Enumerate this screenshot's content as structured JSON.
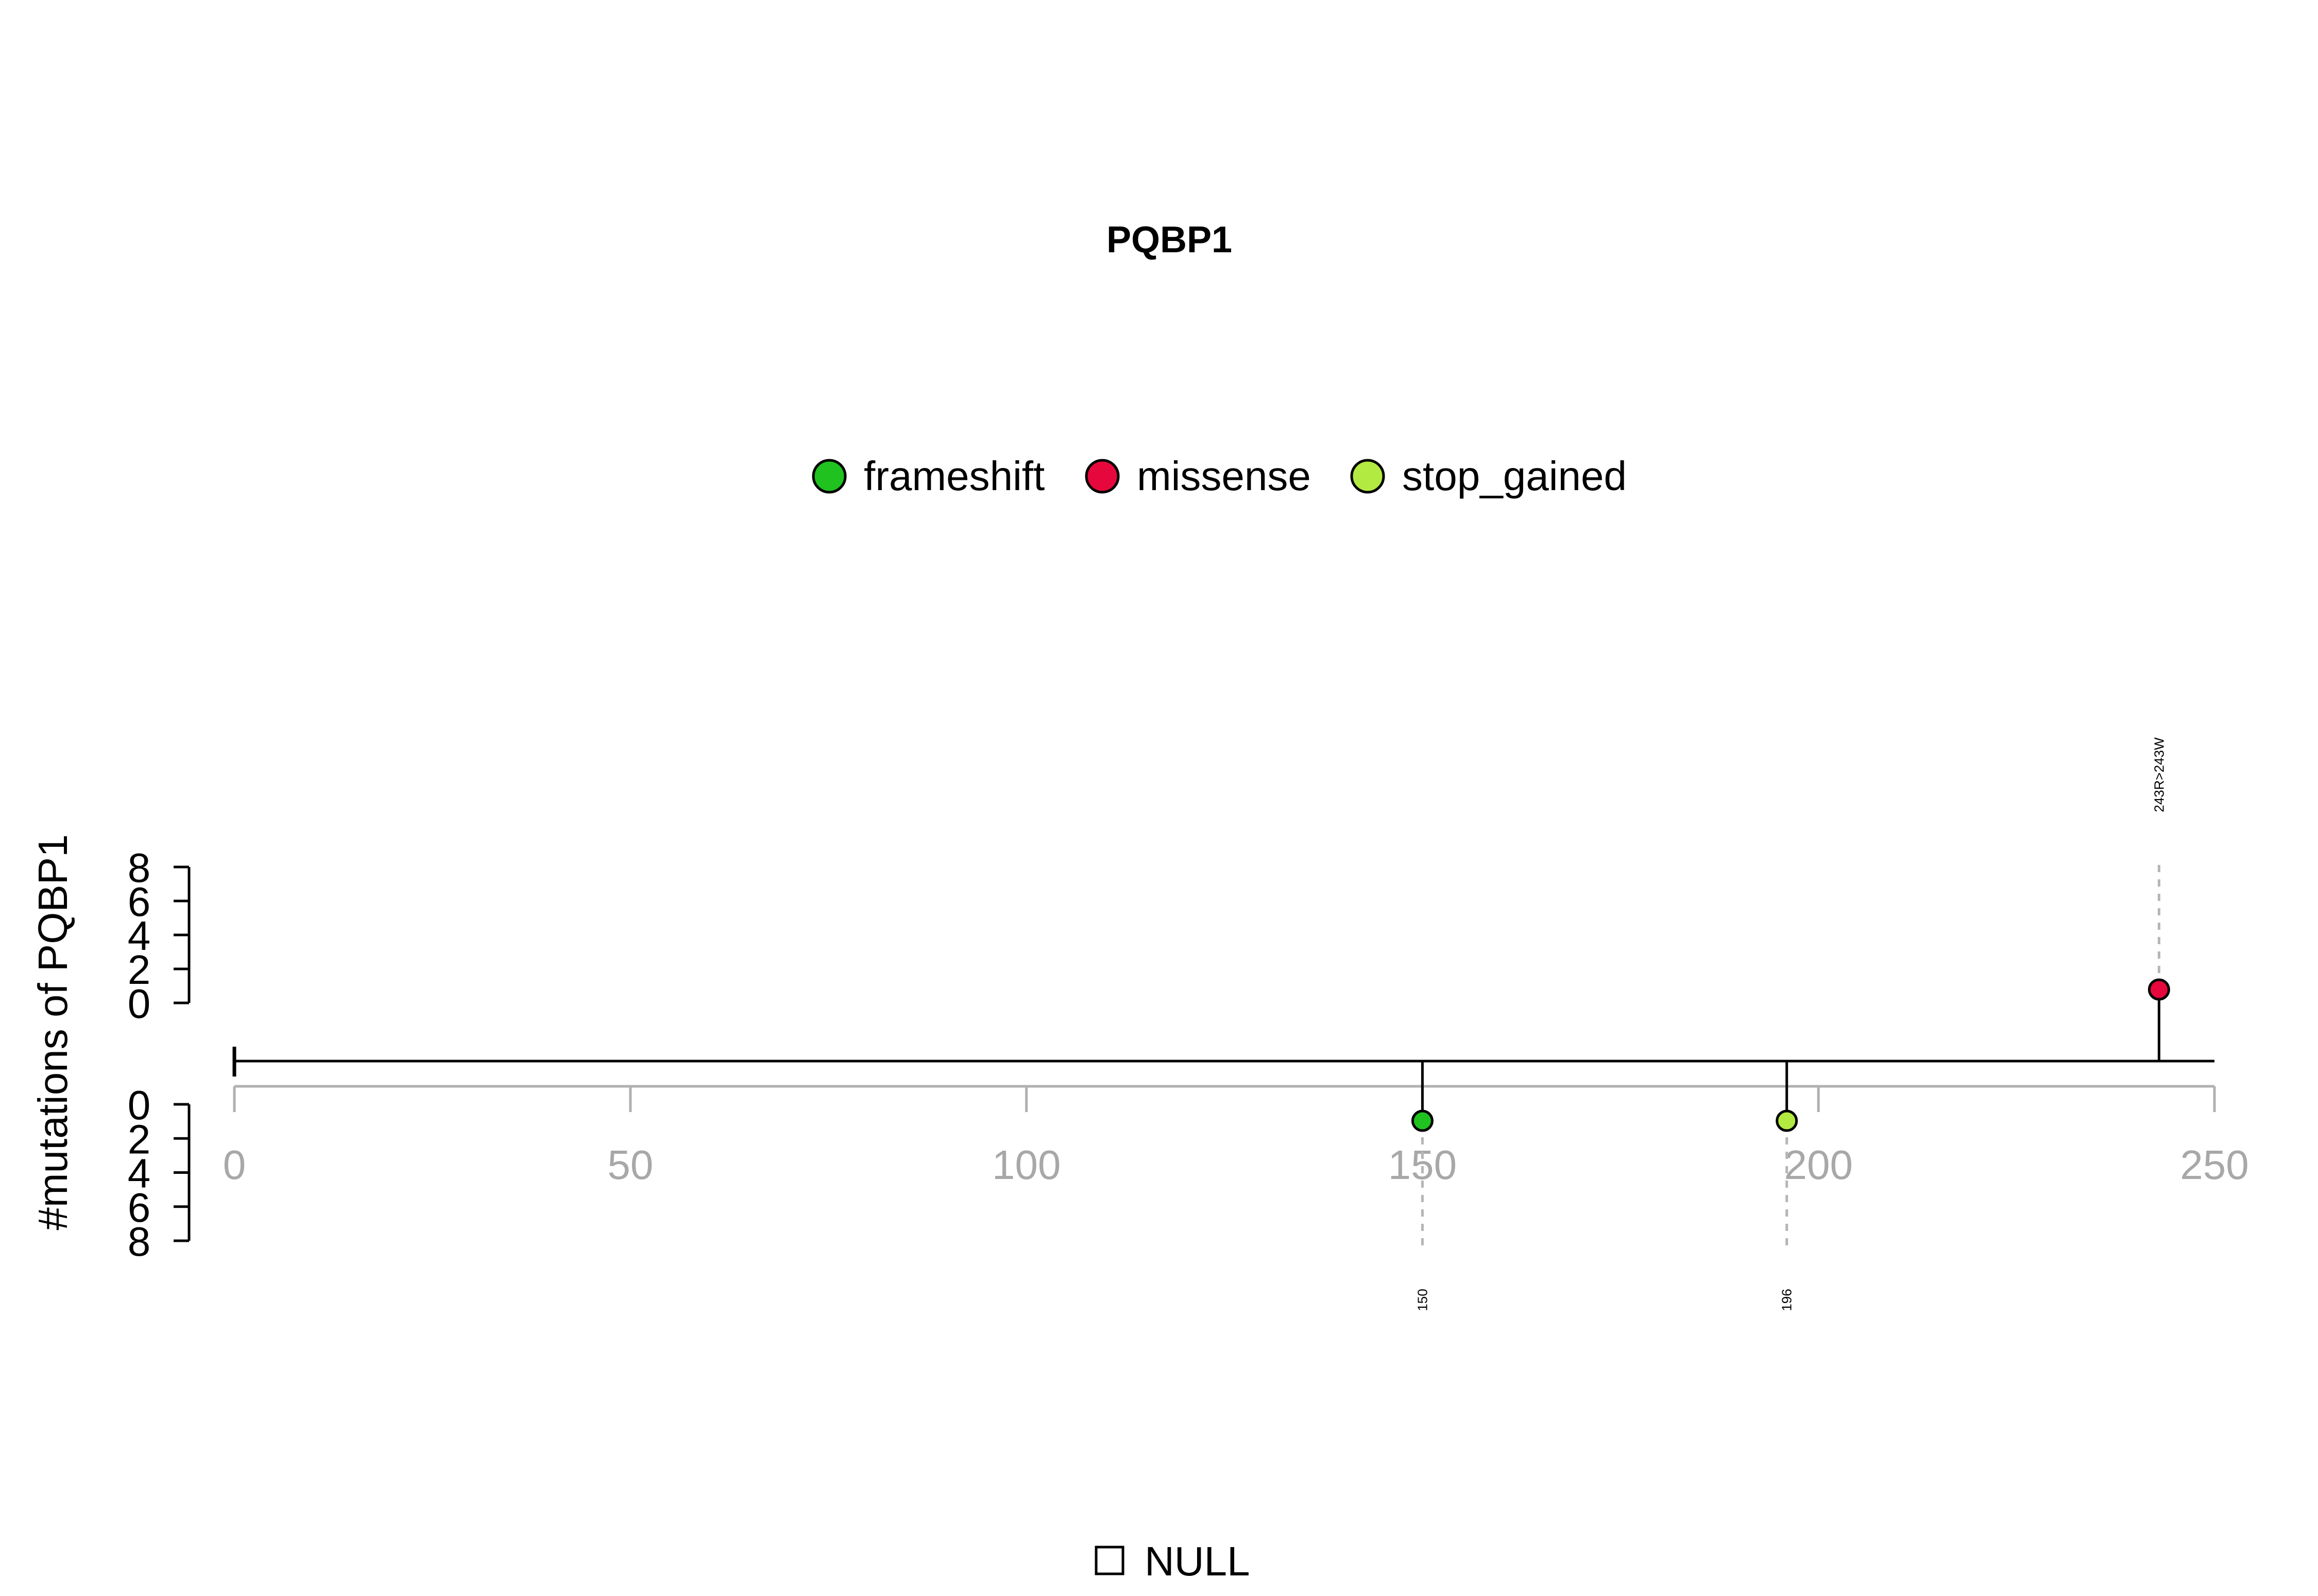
{
  "chart_data": {
    "type": "lollipop",
    "title": "PQBP1",
    "ylabel": "#mutations of PQBP1",
    "protein_length": 250,
    "xlim": [
      0,
      250
    ],
    "x_ticks": [
      "0",
      "50",
      "100",
      "150",
      "200",
      "250"
    ],
    "y_ticks_upper": [
      "8",
      "6",
      "4",
      "2",
      "0"
    ],
    "y_ticks_lower": [
      "0",
      "2",
      "4",
      "6",
      "8"
    ],
    "ylim": [
      0,
      8
    ],
    "legend": {
      "placement": "top-center",
      "entries": [
        {
          "name": "frameshift",
          "color": "#1fc21f"
        },
        {
          "name": "missense",
          "color": "#e6073d"
        },
        {
          "name": "stop_gained",
          "color": "#b3ea41"
        }
      ]
    },
    "mutations": [
      {
        "position": 150,
        "count": 1,
        "type": "frameshift",
        "side": "below",
        "label": "150",
        "color": "#1fc21f"
      },
      {
        "position": 196,
        "count": 1,
        "type": "stop_gained",
        "side": "below",
        "label": "196",
        "color": "#b3ea41"
      },
      {
        "position": 243,
        "count": 1,
        "type": "missense",
        "side": "above",
        "label": "243R>243W",
        "color": "#e6073d"
      }
    ],
    "domain_legend": {
      "label": "NULL"
    }
  }
}
